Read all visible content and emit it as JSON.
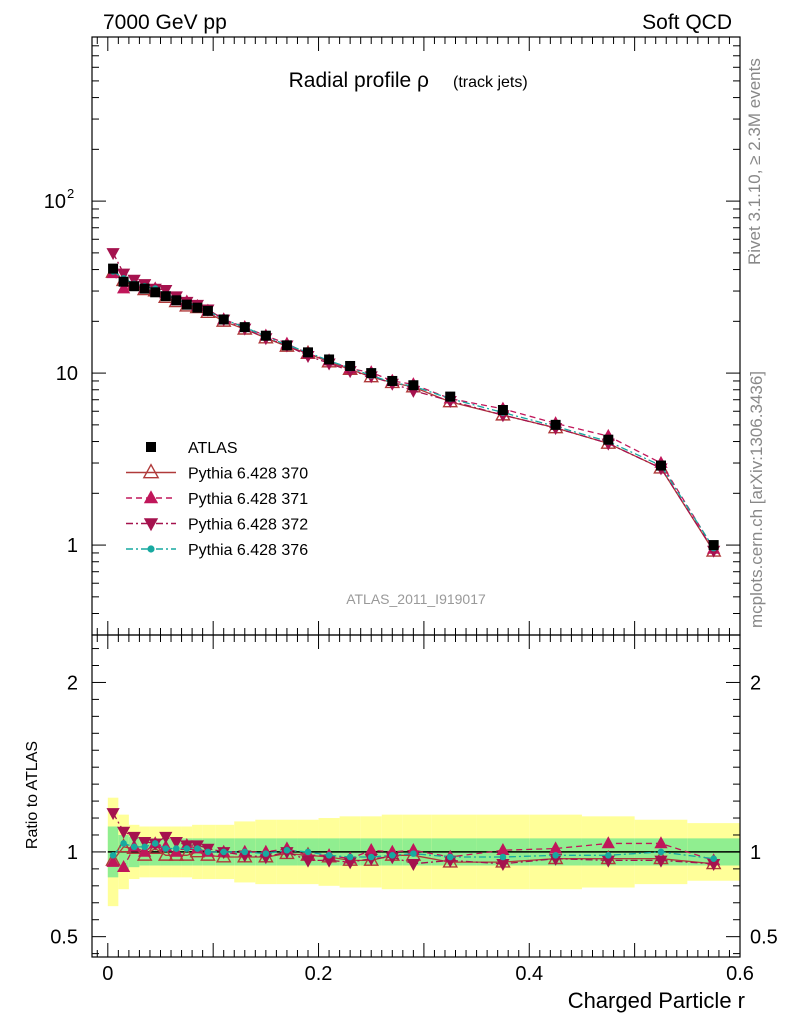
{
  "header": {
    "left": "7000 GeV pp",
    "right": "Soft QCD"
  },
  "side_labels": {
    "rivet": "Rivet 3.1.10, ≥ 2.3M events",
    "mcplots": "mcplots.cern.ch [arXiv:1306.3436]"
  },
  "chart_data": [
    {
      "type": "scatter",
      "title_main": "Radial profile ρ",
      "title_sub": "(track jets)",
      "analysis_label": "ATLAS_2011_I919017",
      "yscale": "log",
      "xlim": [
        -0.015,
        0.6
      ],
      "ylim": [
        0.3,
        900
      ],
      "legend_position": "bottom-left",
      "x": [
        0.005,
        0.015,
        0.025,
        0.035,
        0.045,
        0.055,
        0.065,
        0.075,
        0.085,
        0.095,
        0.11,
        0.13,
        0.15,
        0.17,
        0.19,
        0.21,
        0.23,
        0.25,
        0.27,
        0.29,
        0.325,
        0.375,
        0.425,
        0.475,
        0.525,
        0.575
      ],
      "series": [
        {
          "name": "ATLAS",
          "color": "#000000",
          "marker": "square",
          "line": "none",
          "values": [
            40.5,
            34,
            32,
            31,
            29.5,
            28,
            26.5,
            25,
            24,
            23,
            20.5,
            18.5,
            16.5,
            14.5,
            13.2,
            12,
            11,
            10,
            9,
            8.5,
            7.3,
            6.1,
            5.0,
            4.1,
            2.9,
            1.0
          ]
        },
        {
          "name": "Pythia 6.428 370",
          "color": "#b03a3a",
          "marker": "triangle-up-open",
          "line": "solid",
          "values": [
            38.5,
            34.5,
            32.5,
            30.5,
            30,
            27.5,
            26,
            24.5,
            24,
            22.5,
            20,
            18,
            16,
            14.3,
            13,
            11.6,
            10.5,
            9.5,
            8.8,
            8.3,
            6.8,
            5.7,
            4.8,
            3.9,
            2.8,
            0.92
          ]
        },
        {
          "name": "Pythia 6.428 371",
          "color": "#c0165a",
          "marker": "triangle-up",
          "line": "dashed",
          "values": [
            38,
            31,
            33,
            31,
            31,
            29,
            26.5,
            26,
            24.5,
            23,
            20.5,
            18.5,
            16.5,
            14.8,
            13,
            11.8,
            10.6,
            10.1,
            9,
            8.6,
            7.1,
            6.2,
            5.1,
            4.3,
            3.0,
            0.95
          ]
        },
        {
          "name": "Pythia 6.428 372",
          "color": "#a5124e",
          "marker": "triangle-down",
          "line": "dashdot",
          "values": [
            50,
            38,
            35,
            33,
            31,
            30.5,
            28,
            26,
            25,
            23.5,
            20.5,
            18.2,
            16,
            14.5,
            12.6,
            11.4,
            10.3,
            9.6,
            8.7,
            7.9,
            6.9,
            5.7,
            4.8,
            3.9,
            2.8,
            0.93
          ]
        },
        {
          "name": "Pythia 6.428 376",
          "color": "#17a9a0",
          "marker": "dot",
          "line": "dashdot",
          "values": [
            39,
            35.5,
            33,
            32,
            31,
            28.5,
            27,
            25.5,
            24.5,
            23,
            20.5,
            18.5,
            16.3,
            14.6,
            13.2,
            11.8,
            10.7,
            9.7,
            8.8,
            8.4,
            7.1,
            5.9,
            4.9,
            4.0,
            2.9,
            0.96
          ]
        }
      ]
    },
    {
      "type": "scatter",
      "ylabel": "Ratio to ATLAS",
      "xlabel": "Charged Particle r",
      "xlim": [
        -0.015,
        0.6
      ],
      "ylim": [
        0.38,
        2.28
      ],
      "reference_line": 1,
      "x": [
        0.005,
        0.015,
        0.025,
        0.035,
        0.045,
        0.055,
        0.065,
        0.075,
        0.085,
        0.095,
        0.11,
        0.13,
        0.15,
        0.17,
        0.19,
        0.21,
        0.23,
        0.25,
        0.27,
        0.29,
        0.325,
        0.375,
        0.425,
        0.475,
        0.525,
        0.575
      ],
      "bands": {
        "stat_color": "#90ee90",
        "syst_color": "#ffff99",
        "stat_half_width": [
          0.15,
          0.1,
          0.09,
          0.08,
          0.08,
          0.08,
          0.08,
          0.08,
          0.08,
          0.08,
          0.08,
          0.08,
          0.08,
          0.08,
          0.08,
          0.08,
          0.08,
          0.08,
          0.08,
          0.08,
          0.08,
          0.08,
          0.08,
          0.08,
          0.08,
          0.08
        ],
        "total_half_width": [
          0.32,
          0.22,
          0.16,
          0.15,
          0.15,
          0.15,
          0.15,
          0.15,
          0.16,
          0.16,
          0.16,
          0.18,
          0.19,
          0.19,
          0.19,
          0.2,
          0.21,
          0.21,
          0.22,
          0.22,
          0.22,
          0.22,
          0.22,
          0.21,
          0.19,
          0.17
        ]
      },
      "series": [
        {
          "name": "Pythia 6.428 370",
          "color": "#b03a3a",
          "marker": "triangle-up-open",
          "line": "solid",
          "values": [
            0.95,
            1.03,
            1.02,
            0.98,
            1.02,
            0.98,
            0.98,
            0.98,
            1.0,
            0.98,
            0.97,
            0.97,
            0.97,
            0.99,
            0.98,
            0.97,
            0.95,
            0.95,
            0.98,
            0.98,
            0.94,
            0.94,
            0.96,
            0.96,
            0.96,
            0.93
          ]
        },
        {
          "name": "Pythia 6.428 371",
          "color": "#c0165a",
          "marker": "triangle-up",
          "line": "dashed",
          "values": [
            0.94,
            0.91,
            1.03,
            1.0,
            1.05,
            1.03,
            1.0,
            1.04,
            1.02,
            1.0,
            1.0,
            1.0,
            1.0,
            1.02,
            0.98,
            0.98,
            0.96,
            1.01,
            1.0,
            1.01,
            0.97,
            1.01,
            1.02,
            1.05,
            1.05,
            0.95
          ]
        },
        {
          "name": "Pythia 6.428 372",
          "color": "#a5124e",
          "marker": "triangle-down",
          "line": "dashdot",
          "values": [
            1.23,
            1.12,
            1.09,
            1.06,
            1.05,
            1.09,
            1.06,
            1.04,
            1.04,
            1.02,
            1.0,
            0.98,
            0.97,
            1.0,
            0.95,
            0.95,
            0.94,
            0.96,
            0.97,
            0.93,
            0.95,
            0.93,
            0.96,
            0.95,
            0.95,
            0.93
          ]
        },
        {
          "name": "Pythia 6.428 376",
          "color": "#17a9a0",
          "marker": "dot",
          "line": "dashdot",
          "values": [
            0.98,
            1.05,
            1.03,
            1.03,
            1.05,
            1.02,
            1.02,
            1.02,
            1.02,
            1.0,
            1.0,
            1.0,
            0.99,
            1.01,
            1.0,
            0.98,
            0.97,
            0.97,
            0.98,
            0.99,
            0.97,
            0.97,
            0.98,
            0.98,
            1.0,
            0.96
          ]
        }
      ]
    }
  ]
}
